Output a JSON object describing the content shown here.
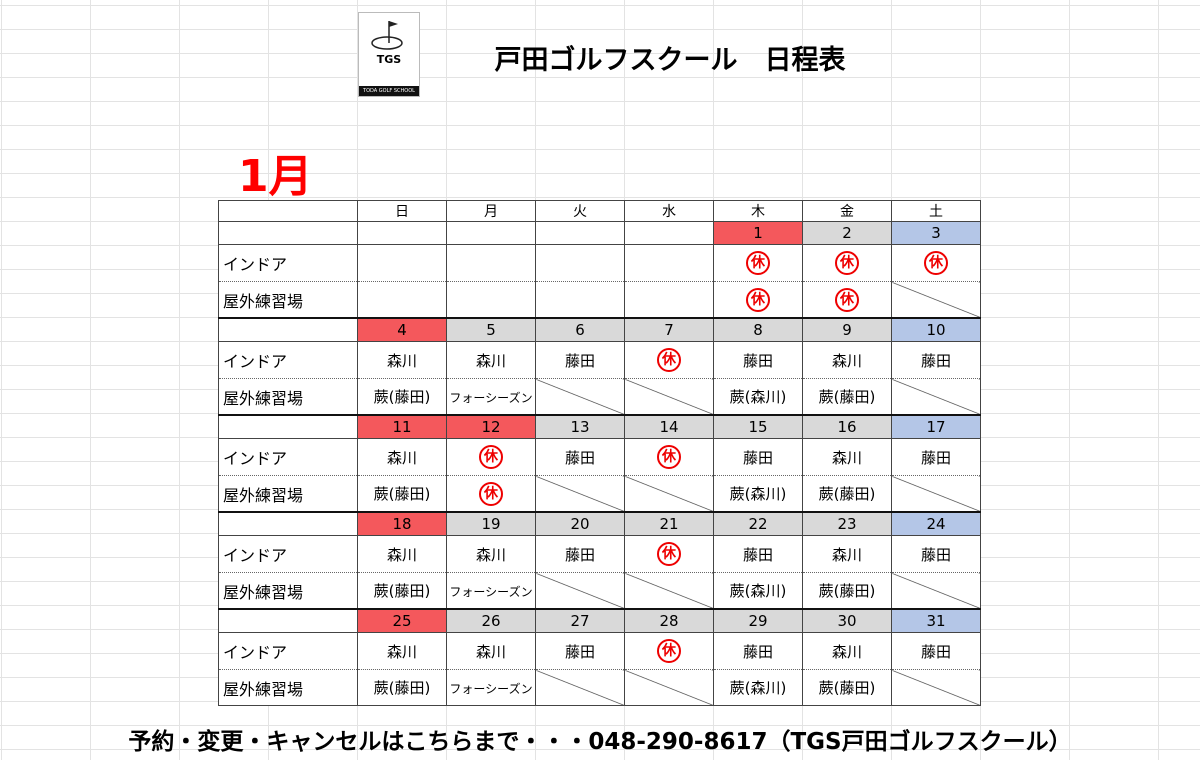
{
  "header": {
    "title": "戸田ゴルフスクール　日程表",
    "logo": {
      "text": "TGS",
      "subtext": "TODA GOLF SCHOOL"
    }
  },
  "month": "1月",
  "weekdays": [
    "日",
    "月",
    "火",
    "水",
    "木",
    "金",
    "土"
  ],
  "row_labels": [
    "インドア",
    "屋外練習場"
  ],
  "weeks": [
    {
      "dates": [
        null,
        null,
        null,
        null,
        1,
        2,
        3
      ],
      "date_colors": [
        null,
        null,
        null,
        null,
        "#f4585c",
        "#d9d9d9",
        "#b4c6e7"
      ],
      "indoor": [
        null,
        null,
        null,
        null,
        "休",
        "休",
        "休"
      ],
      "outdoor": [
        null,
        null,
        null,
        null,
        "休",
        "休",
        null
      ]
    },
    {
      "dates": [
        4,
        5,
        6,
        7,
        8,
        9,
        10
      ],
      "date_colors": [
        "#f4585c",
        "#d9d9d9",
        "#d9d9d9",
        "#d9d9d9",
        "#d9d9d9",
        "#d9d9d9",
        "#b4c6e7"
      ],
      "indoor": [
        "森川",
        "森川",
        "藤田",
        "休",
        "藤田",
        "森川",
        "藤田"
      ],
      "outdoor": [
        "蕨(藤田)",
        "フォーシーズン",
        null,
        null,
        "蕨(森川)",
        "蕨(藤田)",
        null
      ]
    },
    {
      "dates": [
        11,
        12,
        13,
        14,
        15,
        16,
        17
      ],
      "date_colors": [
        "#f4585c",
        "#f4585c",
        "#d9d9d9",
        "#d9d9d9",
        "#d9d9d9",
        "#d9d9d9",
        "#b4c6e7"
      ],
      "indoor": [
        "森川",
        "休",
        "藤田",
        "休",
        "藤田",
        "森川",
        "藤田"
      ],
      "outdoor": [
        "蕨(藤田)",
        "休",
        null,
        null,
        "蕨(森川)",
        "蕨(藤田)",
        null
      ]
    },
    {
      "dates": [
        18,
        19,
        20,
        21,
        22,
        23,
        24
      ],
      "date_colors": [
        "#f4585c",
        "#d9d9d9",
        "#d9d9d9",
        "#d9d9d9",
        "#d9d9d9",
        "#d9d9d9",
        "#b4c6e7"
      ],
      "indoor": [
        "森川",
        "森川",
        "藤田",
        "休",
        "藤田",
        "森川",
        "藤田"
      ],
      "outdoor": [
        "蕨(藤田)",
        "フォーシーズン",
        null,
        null,
        "蕨(森川)",
        "蕨(藤田)",
        null
      ]
    },
    {
      "dates": [
        25,
        26,
        27,
        28,
        29,
        30,
        31
      ],
      "date_colors": [
        "#f4585c",
        "#d9d9d9",
        "#d9d9d9",
        "#d9d9d9",
        "#d9d9d9",
        "#d9d9d9",
        "#b4c6e7"
      ],
      "indoor": [
        "森川",
        "森川",
        "藤田",
        "休",
        "藤田",
        "森川",
        "藤田"
      ],
      "outdoor": [
        "蕨(藤田)",
        "フォーシーズン",
        null,
        null,
        "蕨(森川)",
        "蕨(藤田)",
        null
      ]
    }
  ],
  "footer": "予約・変更・キャンセルはこちらまで・・・048-290-8617（TGS戸田ゴルフスクール）"
}
